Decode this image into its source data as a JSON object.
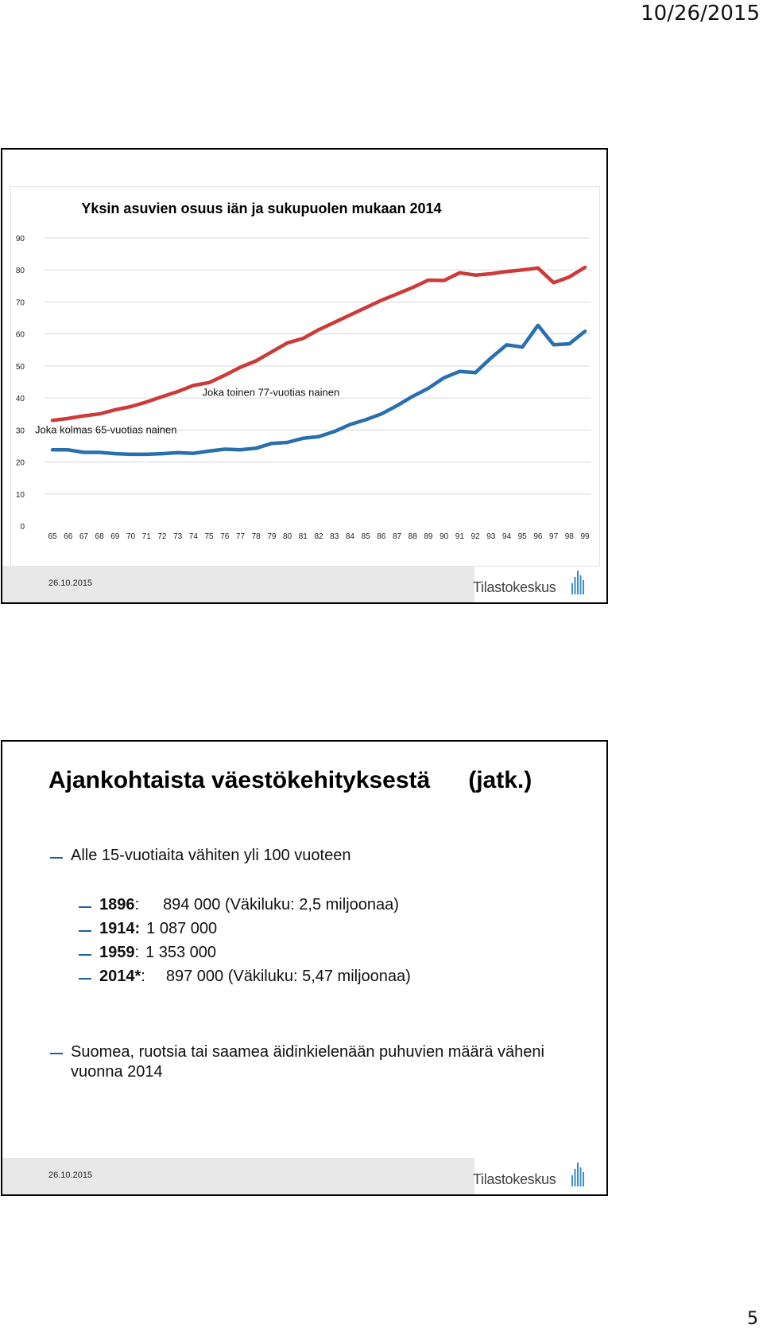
{
  "page": {
    "date": "10/26/2015",
    "number": "5"
  },
  "slide1": {
    "footer_date": "26.10.2015",
    "logo_text": "Tilastokeskus",
    "chart_data": {
      "type": "line",
      "title": "Yksin asuvien osuus iän ja sukupuolen mukaan 2014",
      "xlabel": "",
      "ylabel": "",
      "categories": [
        "65",
        "66",
        "67",
        "68",
        "69",
        "70",
        "71",
        "72",
        "73",
        "74",
        "75",
        "76",
        "77",
        "78",
        "79",
        "80",
        "81",
        "82",
        "83",
        "84",
        "85",
        "86",
        "87",
        "88",
        "89",
        "90",
        "91",
        "92",
        "93",
        "94",
        "95",
        "96",
        "97",
        "98",
        "99"
      ],
      "ylim": [
        0,
        90
      ],
      "yticks": [
        0,
        10,
        20,
        30,
        40,
        50,
        60,
        70,
        80,
        90
      ],
      "grid": true,
      "series": [
        {
          "color": "#cc3a3a",
          "values": [
            33,
            33.6,
            34.4,
            35,
            36.3,
            37.3,
            38.7,
            40.4,
            42,
            43.9,
            44.8,
            47.1,
            49.6,
            51.6,
            54.4,
            57.2,
            58.6,
            61.3,
            63.6,
            65.9,
            68.2,
            70.5,
            72.5,
            74.5,
            76.8,
            76.7,
            79.1,
            78.4,
            78.8,
            79.5,
            80,
            80.6,
            76,
            77.8,
            80.8
          ]
        },
        {
          "color": "#2a6fad",
          "values": [
            23.8,
            23.8,
            23,
            23,
            22.6,
            22.4,
            22.4,
            22.6,
            22.9,
            22.7,
            23.4,
            24,
            23.8,
            24.3,
            25.8,
            26.1,
            27.4,
            27.9,
            29.5,
            31.7,
            33.2,
            35,
            37.6,
            40.5,
            43,
            46.3,
            48.3,
            47.9,
            52.5,
            56.6,
            55.9,
            62.7,
            56.6,
            56.9,
            60.8
          ]
        }
      ],
      "annotations": [
        {
          "text": "Joka kolmas 65-vuotias nainen",
          "x": "65",
          "y": 33
        },
        {
          "text": "Joka toinen 77-vuotias nainen",
          "x": "77",
          "y": 49.6
        }
      ]
    }
  },
  "slide2": {
    "title": "Ajankohtaista väestökehityksestä",
    "title_cont": "(jatk.)",
    "bullet1": "Alle 15-vuotiaita vähiten yli 100 vuoteen",
    "subs": [
      {
        "label": "1896",
        "sep": ":",
        "text": "894 000 (Väkiluku: 2,5 miljoonaa)"
      },
      {
        "label": "1914:",
        "sep": "",
        "text": "1 087 000"
      },
      {
        "label": "1959",
        "sep": ":",
        "text": "1 353 000"
      },
      {
        "label": "2014*",
        "sep": ":",
        "text": "897 000 (Väkiluku: 5,47 miljoonaa)"
      }
    ],
    "bullet2": "Suomea, ruotsia tai saamea äidinkielenään puhuvien määrä väheni vuonna 2014",
    "footer_date": "26.10.2015",
    "logo_text": "Tilastokeskus"
  }
}
